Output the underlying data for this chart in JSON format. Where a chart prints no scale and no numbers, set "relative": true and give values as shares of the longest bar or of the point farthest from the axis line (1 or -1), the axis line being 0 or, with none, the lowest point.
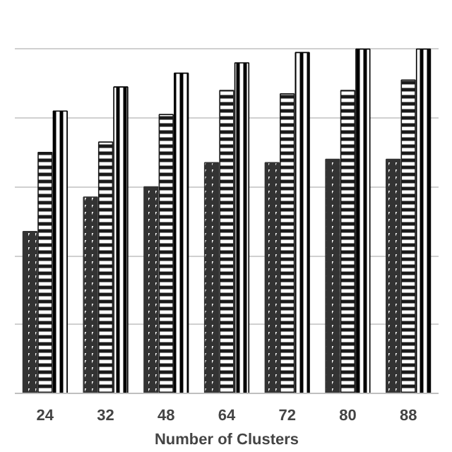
{
  "chart_data": {
    "type": "bar",
    "xlabel": "Number of Clusters",
    "categories": [
      "24",
      "32",
      "48",
      "64",
      "72",
      "80",
      "88"
    ],
    "relative": true,
    "grid": "y",
    "series": [
      {
        "color": "#333333",
        "values": [
          0.47,
          0.57,
          0.6,
          0.67,
          0.67,
          0.68,
          0.68
        ]
      },
      {
        "color": "#1a1a1a",
        "values": [
          0.7,
          0.73,
          0.81,
          0.88,
          0.87,
          0.88,
          0.91
        ]
      },
      {
        "color": "#000000",
        "values": [
          0.82,
          0.89,
          0.93,
          0.96,
          0.99,
          1,
          1
        ]
      }
    ]
  }
}
